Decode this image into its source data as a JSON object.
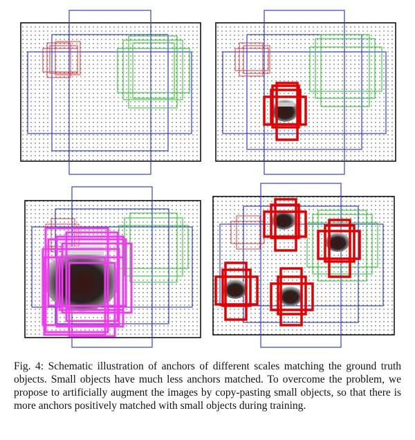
{
  "caption": {
    "label": "Fig. 4:",
    "text": "Schematic illustration of anchors of different scales matching the ground truth objects. Small objects have much less anchors matched. To overcome the problem, we propose to artificially augment the images by copy-pasting small objects, so that there is more anchors positively matched with small objects during training."
  },
  "colors": {
    "small_anchors": "#e33b3b",
    "medium_anchors": "#3fcf3f",
    "large_anchors": "#2d3fd6",
    "matched_small": "#e00000",
    "matched_large": "#f03cf0",
    "grid_dots": "#333333",
    "frame": "#000000"
  },
  "panels": [
    {
      "name": "panel-top-left",
      "object": "none"
    },
    {
      "name": "panel-top-right",
      "object": "small object with matched anchors"
    },
    {
      "name": "panel-bottom-left",
      "object": "large object with matched anchors"
    },
    {
      "name": "panel-bottom-right",
      "object": "copy-pasted small objects with matched anchors"
    }
  ]
}
